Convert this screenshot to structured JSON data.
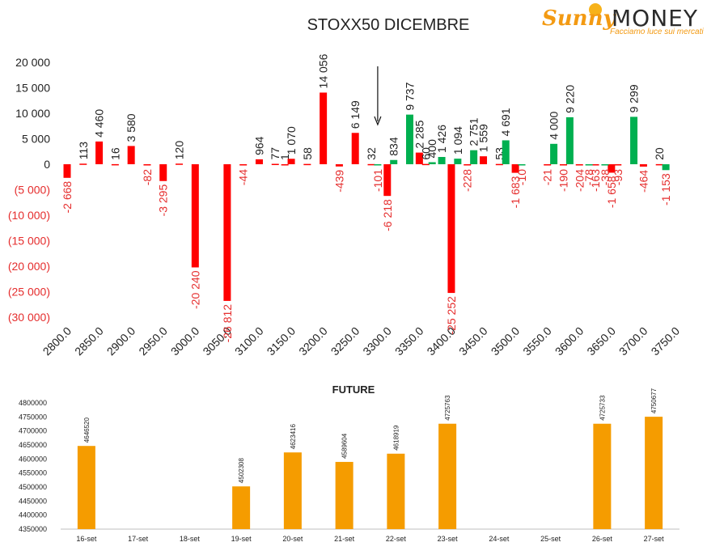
{
  "logo": {
    "sunny": "Sunny",
    "money": "MONEY",
    "tagline": "Facciamo luce sui mercati"
  },
  "colors": {
    "negative": "#ff0000",
    "positive": "#00b050",
    "future": "#f59c00",
    "neg_label": "#e52d2d"
  },
  "chart_data": [
    {
      "type": "bar",
      "title": "STOXX50 DICEMBRE",
      "ylim": [
        -30000,
        20000
      ],
      "yticks": [
        {
          "value": 20000,
          "label": "20 000"
        },
        {
          "value": 15000,
          "label": "15 000"
        },
        {
          "value": 10000,
          "label": "10 000"
        },
        {
          "value": 5000,
          "label": "5 000"
        },
        {
          "value": 0,
          "label": "0"
        },
        {
          "value": -5000,
          "label": "(5 000)"
        },
        {
          "value": -10000,
          "label": "(10 000)"
        },
        {
          "value": -15000,
          "label": "(15 000)"
        },
        {
          "value": -20000,
          "label": "(20 000)"
        },
        {
          "value": -25000,
          "label": "(25 000)"
        },
        {
          "value": -30000,
          "label": "(30 000)"
        }
      ],
      "xticks": [
        "2800.0",
        "2850.0",
        "2900.0",
        "2950.0",
        "3000.0",
        "3050.0",
        "3100.0",
        "3150.0",
        "3200.0",
        "3250.0",
        "3300.0",
        "3350.0",
        "3400.0",
        "3450.0",
        "3500.0",
        "3550.0",
        "3600.0",
        "3650.0",
        "3700.0",
        "3750.0"
      ],
      "xlim": [
        2800,
        3750
      ],
      "arrow_strike": 3285,
      "grid": false,
      "series": [
        {
          "color": "#ff0000",
          "points": [
            {
              "x": 2800,
              "y": -2668,
              "label": "-2 668"
            },
            {
              "x": 2825,
              "y": 113,
              "label": "113"
            },
            {
              "x": 2850,
              "y": 4460,
              "label": "4 460"
            },
            {
              "x": 2875,
              "y": 16,
              "label": "16"
            },
            {
              "x": 2900,
              "y": 3580,
              "label": "3 580"
            },
            {
              "x": 2925,
              "y": -82,
              "label": "-82"
            },
            {
              "x": 2950,
              "y": -3295,
              "label": "-3 295"
            },
            {
              "x": 2975,
              "y": 120,
              "label": "120"
            },
            {
              "x": 3000,
              "y": -20240,
              "label": "-20 240"
            },
            {
              "x": 3050,
              "y": -26812,
              "label": "-26 812"
            },
            {
              "x": 3075,
              "y": -44,
              "label": "-44"
            },
            {
              "x": 3100,
              "y": 964,
              "label": "964"
            },
            {
              "x": 3125,
              "y": 77,
              "label": "77"
            },
            {
              "x": 3140,
              "y": 1,
              "label": "1"
            },
            {
              "x": 3150,
              "y": 1070,
              "label": "1 070"
            },
            {
              "x": 3175,
              "y": 58,
              "label": "58"
            },
            {
              "x": 3200,
              "y": 14056,
              "label": "14 056"
            },
            {
              "x": 3225,
              "y": -439,
              "label": "-439"
            },
            {
              "x": 3250,
              "y": 6149,
              "label": "6 149"
            },
            {
              "x": 3275,
              "y": 32,
              "label": "32"
            },
            {
              "x": 3300,
              "y": -6218,
              "label": "-6 218"
            },
            {
              "x": 3350,
              "y": 2285,
              "label": "2 285"
            },
            {
              "x": 3360,
              "y": 60,
              "label": "60"
            },
            {
              "x": 3400,
              "y": -25252,
              "label": "-25 252"
            },
            {
              "x": 3425,
              "y": -228,
              "label": "-228"
            },
            {
              "x": 3450,
              "y": 1559,
              "label": "1 559"
            },
            {
              "x": 3475,
              "y": 53,
              "label": "53"
            },
            {
              "x": 3500,
              "y": -1683,
              "label": "-1 683"
            },
            {
              "x": 3550,
              "y": -21,
              "label": "-21"
            },
            {
              "x": 3575,
              "y": -190,
              "label": "-190"
            },
            {
              "x": 3600,
              "y": -204,
              "label": "-204"
            },
            {
              "x": 3625,
              "y": -163,
              "label": "-163"
            },
            {
              "x": 3650,
              "y": -1658,
              "label": "-1 658"
            },
            {
              "x": 3660,
              "y": -93,
              "label": "-93"
            },
            {
              "x": 3700,
              "y": -464,
              "label": "-464"
            },
            {
              "x": 3725,
              "y": 20,
              "label": "20"
            }
          ]
        },
        {
          "color": "#00b050",
          "points": [
            {
              "x": 3285,
              "y": -101,
              "label": "-101"
            },
            {
              "x": 3310,
              "y": 834,
              "label": "834"
            },
            {
              "x": 3335,
              "y": 9737,
              "label": "9 737"
            },
            {
              "x": 3370,
              "y": 400,
              "label": "400"
            },
            {
              "x": 3385,
              "y": 1426,
              "label": "1 426"
            },
            {
              "x": 3410,
              "y": 1094,
              "label": "1 094"
            },
            {
              "x": 3435,
              "y": 2751,
              "label": "2 751"
            },
            {
              "x": 3485,
              "y": 4691,
              "label": "4 691"
            },
            {
              "x": 3510,
              "y": -10,
              "label": "-10"
            },
            {
              "x": 3560,
              "y": 4000,
              "label": "4 000"
            },
            {
              "x": 3585,
              "y": 9220,
              "label": "9 220"
            },
            {
              "x": 3615,
              "y": -78,
              "label": "-78"
            },
            {
              "x": 3640,
              "y": -38,
              "label": "-38"
            },
            {
              "x": 3685,
              "y": 9299,
              "label": "9 299"
            },
            {
              "x": 3735,
              "y": -1153,
              "label": "-1 153"
            }
          ]
        }
      ]
    },
    {
      "type": "bar",
      "title": "FUTURE",
      "ylim": [
        4350000,
        4800000
      ],
      "yticks": [
        "4800000",
        "4750000",
        "4700000",
        "4650000",
        "4600000",
        "4550000",
        "4500000",
        "4450000",
        "4400000",
        "4350000"
      ],
      "categories": [
        "16-set",
        "17-set",
        "18-set",
        "19-set",
        "20-set",
        "21-set",
        "22-set",
        "23-set",
        "24-set",
        "25-set",
        "26-set",
        "27-set"
      ],
      "values": [
        4646520,
        null,
        null,
        4502308,
        4623416,
        4589604,
        4618919,
        4725763,
        null,
        null,
        4725733,
        4750677
      ],
      "grid": false
    }
  ]
}
